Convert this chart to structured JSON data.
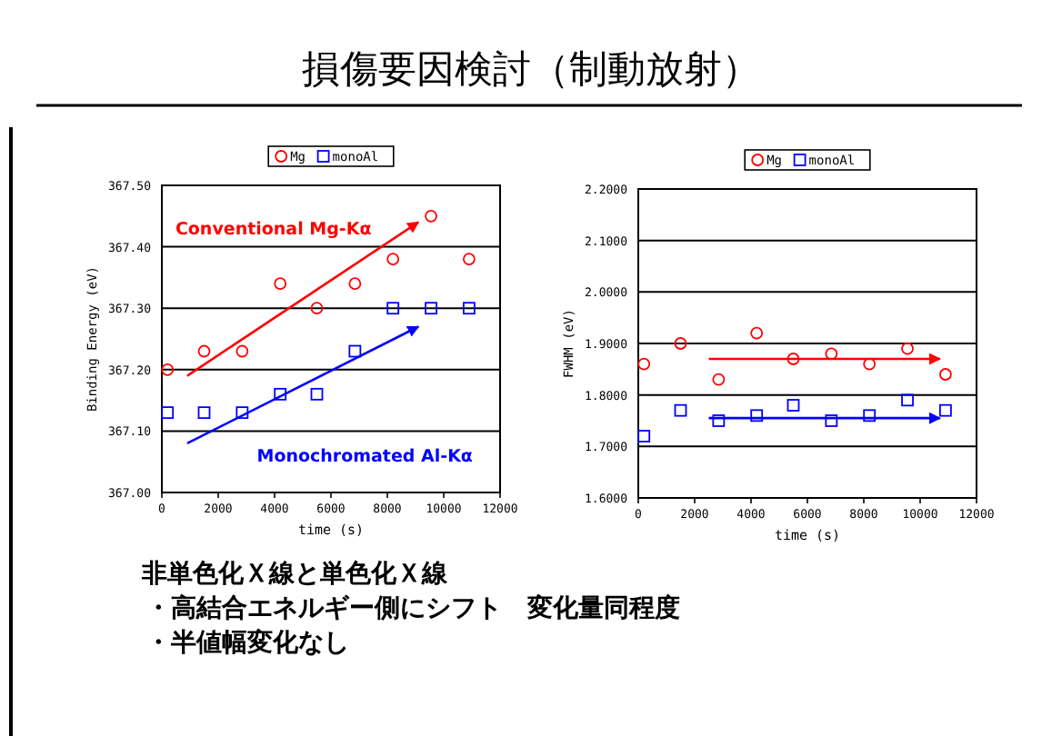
{
  "chart_data": [
    {
      "type": "scatter",
      "title": "損傷要因検討（制動放射）",
      "xlabel": "time (s)",
      "ylabel": "Binding Energy (eV)",
      "x": [
        200,
        1500,
        2850,
        4200,
        5500,
        6850,
        8200,
        9550,
        10900
      ],
      "series": [
        {
          "name": "Mg",
          "color": "#ff0000",
          "marker": "circle",
          "values": [
            367.2,
            367.23,
            367.23,
            367.34,
            367.3,
            367.34,
            367.38,
            367.45,
            367.38
          ]
        },
        {
          "name": "monoAl",
          "color": "#0000ff",
          "marker": "square",
          "values": [
            367.13,
            367.13,
            367.13,
            367.16,
            367.16,
            367.23,
            367.3,
            367.3,
            367.3
          ]
        },
        {
          "type": "line",
          "color": "#ff0000",
          "x": [
            900,
            9100
          ],
          "values": [
            367.19,
            367.44
          ]
        },
        {
          "type": "line",
          "color": "#0000ff",
          "x": [
            900,
            9100
          ],
          "values": [
            367.08,
            367.27
          ]
        }
      ],
      "annotations": [
        "Conventional Mg-Kα",
        "Monochromated Al-Kα",
        "非単色化Ｘ線と単色化Ｘ線",
        "・高結合エネルギー側にシフト　変化量同程度",
        "・半値幅変化なし"
      ],
      "xlim": [
        0,
        12000
      ],
      "xticks": [
        0,
        2000,
        4000,
        6000,
        8000,
        10000,
        12000
      ],
      "ylim": [
        367.0,
        367.5
      ],
      "yticks": [
        {
          "value": 367.0,
          "label": "367.00"
        },
        {
          "value": 367.1,
          "label": "367.10"
        },
        {
          "value": 367.2,
          "label": "367.20"
        },
        {
          "value": 367.3,
          "label": "367.30"
        },
        {
          "value": 367.4,
          "label": "367.40"
        },
        {
          "value": 367.5,
          "label": "367.50"
        }
      ],
      "grid": "y",
      "legend": "top"
    },
    {
      "type": "scatter",
      "xlabel": "time (s)",
      "ylabel": "FWHM (eV)",
      "x": [
        200,
        1500,
        2850,
        4200,
        5500,
        6850,
        8200,
        9550,
        10900
      ],
      "series": [
        {
          "name": "Mg",
          "color": "#ff0000",
          "marker": "circle",
          "values": [
            1.86,
            1.9,
            1.83,
            1.92,
            1.87,
            1.88,
            1.86,
            1.89,
            1.84
          ]
        },
        {
          "name": "monoAl",
          "color": "#0000ff",
          "marker": "square",
          "values": [
            1.72,
            1.77,
            1.75,
            1.76,
            1.78,
            1.75,
            1.76,
            1.79,
            1.77
          ]
        },
        {
          "type": "line",
          "color": "#ff0000",
          "x": [
            2500,
            10700
          ],
          "values": [
            1.87,
            1.87
          ]
        },
        {
          "type": "line",
          "color": "#0000ff",
          "x": [
            2500,
            10700
          ],
          "values": [
            1.755,
            1.755
          ]
        }
      ],
      "xlim": [
        0,
        12000
      ],
      "xticks": [
        0,
        2000,
        4000,
        6000,
        8000,
        10000,
        12000
      ],
      "ylim": [
        1.6,
        2.2
      ],
      "yticks": [
        {
          "value": 1.6,
          "label": "1.6000"
        },
        {
          "value": 1.7,
          "label": "1.7000"
        },
        {
          "value": 1.8,
          "label": "1.8000"
        },
        {
          "value": 1.9,
          "label": "1.9000"
        },
        {
          "value": 2.0,
          "label": "2.0000"
        },
        {
          "value": 2.1,
          "label": "2.1000"
        },
        {
          "value": 2.2,
          "label": "2.2000"
        }
      ],
      "grid": "y",
      "legend": "top"
    }
  ]
}
